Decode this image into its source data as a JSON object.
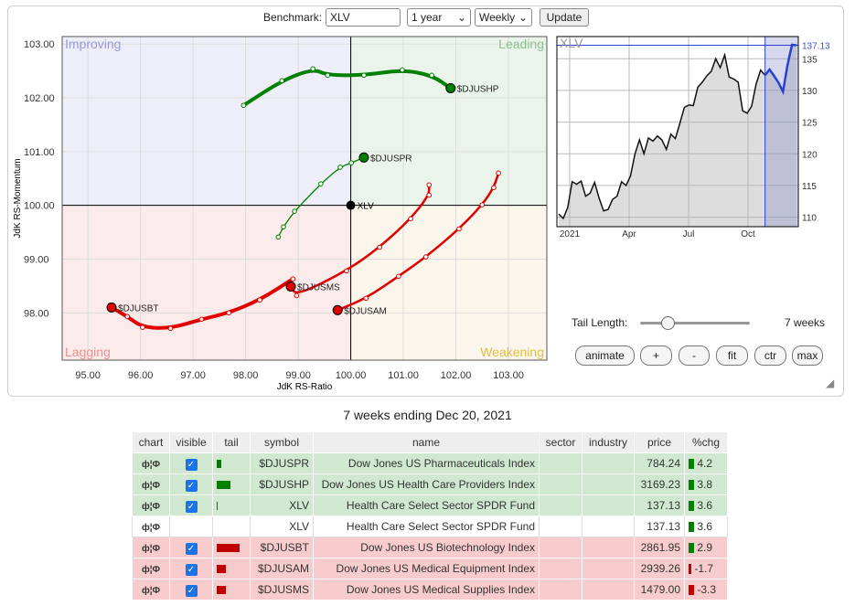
{
  "controls": {
    "benchmark_label": "Benchmark:",
    "benchmark_value": "XLV",
    "period": "1 year",
    "frequency": "Weekly",
    "update": "Update"
  },
  "rrg": {
    "xlabel": "JdK RS-Ratio",
    "ylabel": "JdK RS-Momentum",
    "xlim": [
      94.51,
      103.73
    ],
    "ylim": [
      97.12,
      103.14
    ],
    "xticks": [
      "95.00",
      "96.00",
      "97.00",
      "98.00",
      "99.00",
      "100.00",
      "101.00",
      "102.00",
      "103.00"
    ],
    "yticks": [
      "98.00",
      "99.00",
      "100.00",
      "101.00",
      "102.00",
      "103.00"
    ],
    "quadrants": {
      "improving": "Improving",
      "leading": "Leading",
      "lagging": "Lagging",
      "weakening": "Weakening"
    },
    "benchmark": {
      "label": "XLV",
      "x": 100,
      "y": 100
    },
    "series": [
      {
        "symbol": "$DJUSHP",
        "color": "#008000",
        "thick": true,
        "points": [
          [
            97.96,
            101.86
          ],
          [
            98.69,
            102.32
          ],
          [
            99.28,
            102.54
          ],
          [
            99.56,
            102.42
          ],
          [
            100.25,
            102.42
          ],
          [
            100.98,
            102.52
          ],
          [
            101.54,
            102.42
          ],
          [
            101.9,
            102.18
          ]
        ]
      },
      {
        "symbol": "$DJUSPR",
        "color": "#008000",
        "thick": false,
        "points": [
          [
            98.62,
            99.41
          ],
          [
            98.72,
            99.6
          ],
          [
            98.93,
            99.89
          ],
          [
            99.43,
            100.4
          ],
          [
            99.8,
            100.71
          ],
          [
            100.01,
            100.79
          ],
          [
            100.25,
            100.89
          ]
        ]
      },
      {
        "symbol": "$DJUSBT",
        "color": "#e00000",
        "thick": true,
        "points": [
          [
            98.9,
            98.63
          ],
          [
            98.27,
            98.24
          ],
          [
            97.68,
            98.0
          ],
          [
            97.16,
            97.88
          ],
          [
            96.57,
            97.71
          ],
          [
            96.04,
            97.73
          ],
          [
            95.75,
            97.93
          ],
          [
            95.45,
            98.1
          ]
        ]
      },
      {
        "symbol": "$DJUSMS",
        "color": "#e00000",
        "thick": false,
        "points": [
          [
            101.49,
            100.38
          ],
          [
            101.49,
            100.19
          ],
          [
            101.14,
            99.75
          ],
          [
            100.55,
            99.22
          ],
          [
            99.92,
            98.78
          ],
          [
            98.97,
            98.32
          ],
          [
            98.86,
            98.49
          ]
        ]
      },
      {
        "symbol": "$DJUSAM",
        "color": "#e00000",
        "thick": false,
        "points": [
          [
            102.81,
            100.6
          ],
          [
            102.72,
            100.33
          ],
          [
            102.5,
            100.01
          ],
          [
            102.06,
            99.56
          ],
          [
            101.43,
            99.04
          ],
          [
            100.91,
            98.68
          ],
          [
            100.29,
            98.27
          ],
          [
            99.75,
            98.05
          ]
        ]
      }
    ]
  },
  "price_chart": {
    "symbol": "XLV",
    "last": "137.13",
    "ylim": [
      108.5,
      138.5
    ],
    "yticks": [
      "110",
      "115",
      "120",
      "125",
      "130",
      "135"
    ],
    "xticks": [
      "2021",
      "Apr",
      "Jul",
      "Oct"
    ],
    "values": [
      110.5,
      109.8,
      111.5,
      115.6,
      115.2,
      115.7,
      113.3,
      113.8,
      115.5,
      113,
      111,
      111.2,
      112.8,
      113.3,
      115.6,
      115,
      116.5,
      120,
      122.2,
      120,
      122.5,
      122,
      122.8,
      122.2,
      120.7,
      123.1,
      122.4,
      124.8,
      127.3,
      127.7,
      127.6,
      130.5,
      131.3,
      132.3,
      133,
      135,
      133.6,
      135.6,
      132.1,
      131.8,
      131.3,
      126.8,
      126.4,
      127.5,
      131,
      133.2,
      132.4,
      133.3,
      132.3,
      131.2,
      129.8,
      134,
      137.2,
      137.13
    ],
    "highlight_weeks": 7
  },
  "tail": {
    "label": "Tail Length:",
    "value": "7 weeks",
    "slider_fraction": 0.25
  },
  "buttons": {
    "animate": "animate",
    "plus": "+",
    "minus": "-",
    "fit": "fit",
    "ctr": "ctr",
    "max": "max"
  },
  "table_title": "7 weeks ending Dec 20, 2021",
  "table": {
    "headers": [
      "chart",
      "visible",
      "tail",
      "symbol",
      "name",
      "sector",
      "industry",
      "price",
      "%chg"
    ],
    "rows": [
      {
        "cls": "g",
        "visible": true,
        "tail": 0.2,
        "tail_color": "#008000",
        "symbol": "$DJUSPR",
        "name": "Dow Jones US Pharmaceuticals Index",
        "price": "784.24",
        "chg": "4.2",
        "chg_color": "#008000"
      },
      {
        "cls": "g",
        "visible": true,
        "tail": 0.6,
        "tail_color": "#008000",
        "symbol": "$DJUSHP",
        "name": "Dow Jones US Health Care Providers Index",
        "price": "3169.23",
        "chg": "3.8",
        "chg_color": "#008000"
      },
      {
        "cls": "g",
        "visible": true,
        "tail": 0.04,
        "tail_color": "#008000",
        "symbol": "XLV",
        "name": "Health Care Select Sector SPDR Fund",
        "price": "137.13",
        "chg": "3.6",
        "chg_color": "#008000"
      },
      {
        "cls": "w",
        "visible": false,
        "tail": 0,
        "tail_color": "#008000",
        "symbol": "XLV",
        "name": "Health Care Select Sector SPDR Fund",
        "price": "137.13",
        "chg": "3.6",
        "chg_color": "#008000"
      },
      {
        "cls": "r",
        "visible": true,
        "tail": 1.0,
        "tail_color": "#c00000",
        "symbol": "$DJUSBT",
        "name": "Dow Jones US Biotechnology Index",
        "price": "2861.95",
        "chg": "2.9",
        "chg_color": "#008000"
      },
      {
        "cls": "r",
        "visible": true,
        "tail": 0.4,
        "tail_color": "#c00000",
        "symbol": "$DJUSAM",
        "name": "Dow Jones US Medical Equipment Index",
        "price": "2939.26",
        "chg": "-1.7",
        "chg_color": "#c00000"
      },
      {
        "cls": "r",
        "visible": true,
        "tail": 0.4,
        "tail_color": "#c00000",
        "symbol": "$DJUSMS",
        "name": "Dow Jones US Medical Supplies Index",
        "price": "1479.00",
        "chg": "-3.3",
        "chg_color": "#c00000"
      }
    ]
  }
}
